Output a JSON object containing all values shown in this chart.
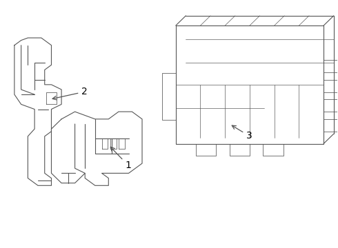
{
  "title": "",
  "background_color": "#ffffff",
  "line_color": "#555555",
  "line_width": 0.8,
  "label_fontsize": 10,
  "labels": {
    "1": [
      0.38,
      0.3
    ],
    "2": [
      0.27,
      0.6
    ],
    "3": [
      0.73,
      0.52
    ]
  },
  "arrow_starts": {
    "1": [
      0.38,
      0.33
    ],
    "2": [
      0.25,
      0.6
    ],
    "3": [
      0.71,
      0.54
    ]
  },
  "arrow_ends": {
    "1": [
      0.33,
      0.38
    ],
    "2": [
      0.22,
      0.58
    ],
    "3": [
      0.67,
      0.51
    ]
  },
  "figsize": [
    4.9,
    3.6
  ],
  "dpi": 100
}
